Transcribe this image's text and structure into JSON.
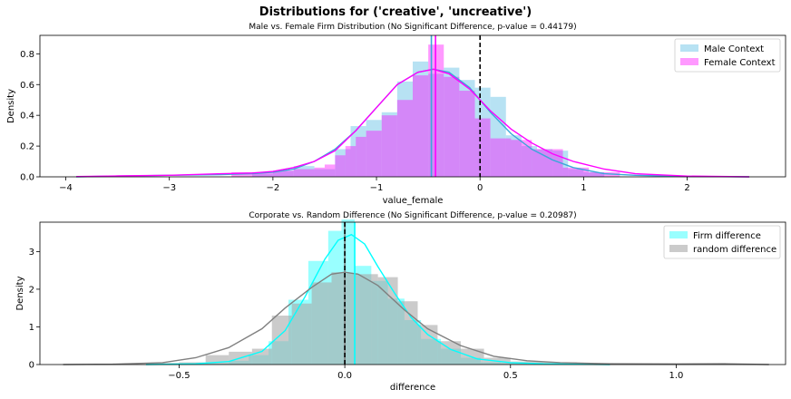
{
  "suptitle": "Distributions for ('creative', 'uncreative')",
  "chart_data": [
    {
      "type": "histogram+kde",
      "title": "Male vs. Female Firm Distribution (No Significant Difference, p-value = 0.44179)",
      "xlabel": "value_female",
      "ylabel": "Density",
      "xlim": [
        -4.25,
        2.95
      ],
      "ylim": [
        0,
        0.92
      ],
      "xticks": [
        -4,
        -3,
        -2,
        -1,
        0,
        1,
        2
      ],
      "yticks": [
        0.0,
        0.2,
        0.4,
        0.6,
        0.8
      ],
      "xtick_labels": [
        "−4",
        "−3",
        "−2",
        "−1",
        "0",
        "1",
        "2"
      ],
      "ytick_labels": [
        "0.0",
        "0.2",
        "0.4",
        "0.6",
        "0.8"
      ],
      "legend_position": "top-right",
      "vline_dashed": 0,
      "series": [
        {
          "name": "Male Context",
          "color": "#87CEEB",
          "alpha": 0.6,
          "bin_edges": [
            -2.2,
            -2.0,
            -1.8,
            -1.6,
            -1.4,
            -1.25,
            -1.1,
            -0.95,
            -0.8,
            -0.65,
            -0.5,
            -0.35,
            -0.2,
            -0.05,
            0.1,
            0.25,
            0.4,
            0.55,
            0.7,
            0.85,
            1.0,
            1.2
          ],
          "heights": [
            0.02,
            0.04,
            0.07,
            0.05,
            0.18,
            0.33,
            0.37,
            0.42,
            0.62,
            0.75,
            0.67,
            0.71,
            0.63,
            0.58,
            0.52,
            0.27,
            0.2,
            0.18,
            0.17,
            0.05,
            0.03
          ],
          "kde_x": [
            -3.9,
            -3.5,
            -3.0,
            -2.5,
            -2.2,
            -2.0,
            -1.8,
            -1.6,
            -1.4,
            -1.2,
            -1.0,
            -0.8,
            -0.6,
            -0.45,
            -0.3,
            -0.1,
            0.1,
            0.3,
            0.5,
            0.7,
            0.9,
            1.2,
            1.5,
            2.0,
            2.6
          ],
          "kde_y": [
            0.0,
            0.005,
            0.01,
            0.015,
            0.02,
            0.03,
            0.05,
            0.1,
            0.18,
            0.3,
            0.45,
            0.6,
            0.68,
            0.7,
            0.68,
            0.58,
            0.42,
            0.28,
            0.18,
            0.11,
            0.06,
            0.02,
            0.01,
            0.003,
            0.0
          ],
          "mean_line": -0.47
        },
        {
          "name": "Female Context",
          "color": "#FF00FF",
          "alpha": 0.4,
          "bin_edges": [
            -2.4,
            -2.2,
            -2.0,
            -1.8,
            -1.6,
            -1.5,
            -1.4,
            -1.3,
            -1.2,
            -1.1,
            -0.95,
            -0.8,
            -0.65,
            -0.5,
            -0.35,
            -0.2,
            -0.05,
            0.1,
            0.3,
            0.5,
            0.8,
            1.05,
            1.35
          ],
          "heights": [
            0.03,
            0.03,
            0.04,
            0.05,
            0.06,
            0.08,
            0.14,
            0.2,
            0.26,
            0.3,
            0.4,
            0.5,
            0.66,
            0.86,
            0.65,
            0.56,
            0.38,
            0.25,
            0.24,
            0.18,
            0.06,
            0.03
          ],
          "kde_x": [
            -3.9,
            -3.5,
            -3.0,
            -2.5,
            -2.2,
            -2.0,
            -1.8,
            -1.6,
            -1.4,
            -1.2,
            -1.0,
            -0.8,
            -0.6,
            -0.45,
            -0.3,
            -0.1,
            0.1,
            0.3,
            0.5,
            0.7,
            0.9,
            1.2,
            1.5,
            2.0,
            2.6
          ],
          "kde_y": [
            0.002,
            0.006,
            0.01,
            0.02,
            0.025,
            0.035,
            0.06,
            0.1,
            0.17,
            0.3,
            0.45,
            0.6,
            0.68,
            0.7,
            0.67,
            0.57,
            0.43,
            0.31,
            0.22,
            0.15,
            0.1,
            0.05,
            0.02,
            0.005,
            0.0
          ],
          "mean_line": -0.43
        }
      ]
    },
    {
      "type": "histogram+kde",
      "title": "Corporate vs. Random Difference (No Significant Difference, p-value = 0.20987)",
      "xlabel": "difference",
      "ylabel": "Density",
      "xlim": [
        -0.92,
        1.33
      ],
      "ylim": [
        0,
        3.78
      ],
      "xticks": [
        -0.5,
        0.0,
        0.5,
        1.0
      ],
      "yticks": [
        0,
        1,
        2,
        3
      ],
      "xtick_labels": [
        "−0.5",
        "0.0",
        "0.5",
        "1.0"
      ],
      "ytick_labels": [
        "0",
        "1",
        "2",
        "3"
      ],
      "legend_position": "top-right",
      "vline_dashed": 0.0,
      "series": [
        {
          "name": "Firm difference",
          "color": "#00FFFF",
          "alpha": 0.4,
          "bin_edges": [
            -0.5,
            -0.42,
            -0.35,
            -0.29,
            -0.23,
            -0.17,
            -0.11,
            -0.05,
            -0.01,
            0.03,
            0.08,
            0.13,
            0.18,
            0.23,
            0.29,
            0.35,
            0.41,
            0.47,
            0.55
          ],
          "heights": [
            0.02,
            0.03,
            0.1,
            0.25,
            0.62,
            1.72,
            2.75,
            3.55,
            3.85,
            2.62,
            2.22,
            1.75,
            1.18,
            0.68,
            0.42,
            0.18,
            0.06,
            0.04
          ],
          "kde_x": [
            -0.6,
            -0.45,
            -0.35,
            -0.25,
            -0.18,
            -0.12,
            -0.06,
            -0.02,
            0.02,
            0.06,
            0.1,
            0.15,
            0.2,
            0.25,
            0.32,
            0.4,
            0.5,
            0.6,
            0.7,
            0.8
          ],
          "kde_y": [
            0.0,
            0.02,
            0.08,
            0.35,
            0.9,
            1.8,
            2.8,
            3.3,
            3.45,
            3.2,
            2.6,
            1.9,
            1.25,
            0.8,
            0.4,
            0.15,
            0.05,
            0.02,
            0.01,
            0.0
          ],
          "mean_line": 0.03
        },
        {
          "name": "random difference",
          "color": "#A9A9A9",
          "alpha": 0.6,
          "bin_edges": [
            -0.6,
            -0.5,
            -0.42,
            -0.35,
            -0.28,
            -0.22,
            -0.16,
            -0.1,
            -0.04,
            0.0,
            0.04,
            0.1,
            0.16,
            0.22,
            0.28,
            0.35,
            0.42,
            0.5,
            0.6,
            0.7,
            1.15
          ],
          "heights": [
            0.04,
            0.06,
            0.25,
            0.34,
            0.42,
            1.3,
            1.62,
            2.18,
            2.45,
            2.42,
            2.4,
            2.32,
            1.68,
            1.05,
            0.62,
            0.42,
            0.18,
            0.08,
            0.06,
            0.04
          ],
          "kde_x": [
            -0.85,
            -0.7,
            -0.55,
            -0.45,
            -0.35,
            -0.25,
            -0.18,
            -0.1,
            -0.04,
            0.0,
            0.04,
            0.1,
            0.18,
            0.25,
            0.35,
            0.45,
            0.55,
            0.65,
            0.8,
            1.0,
            1.15,
            1.28
          ],
          "kde_y": [
            0.0,
            0.01,
            0.05,
            0.18,
            0.45,
            0.95,
            1.5,
            2.05,
            2.4,
            2.45,
            2.4,
            2.1,
            1.45,
            0.95,
            0.5,
            0.22,
            0.1,
            0.05,
            0.02,
            0.01,
            0.02,
            0.0
          ],
          "mean_line": 0.0
        }
      ]
    }
  ]
}
